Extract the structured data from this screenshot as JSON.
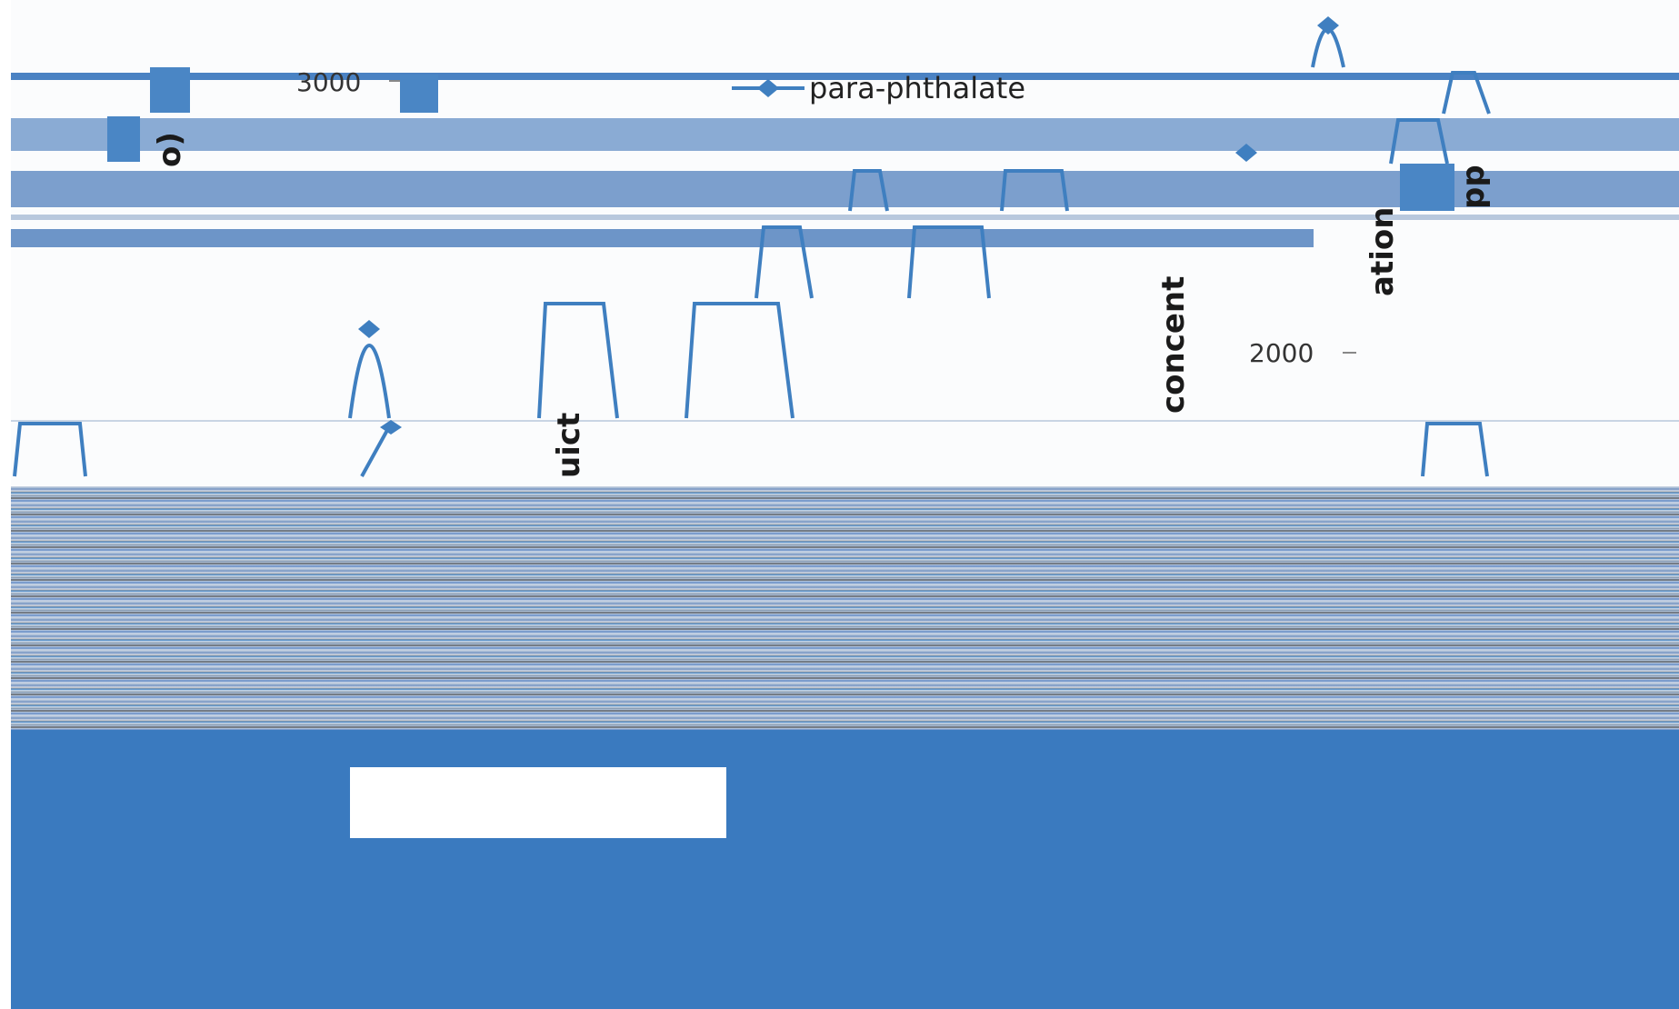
{
  "chart_data": {
    "type": "line",
    "legend": {
      "entries": [
        "para-phthalate"
      ],
      "placement": "top"
    },
    "series": [
      {
        "name": "para-phthalate",
        "color": "#3f7fc0",
        "marker": "diamond"
      }
    ],
    "y_ticks": [
      "3000",
      "2000"
    ],
    "ylabel_fragments": [
      "o)",
      "pp",
      "ation",
      "concent",
      "uict"
    ]
  }
}
